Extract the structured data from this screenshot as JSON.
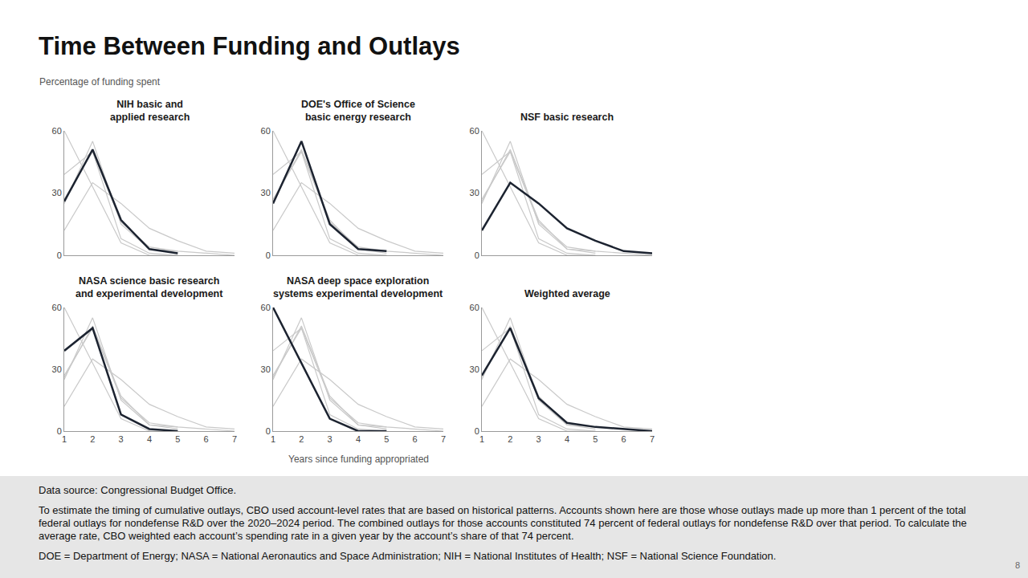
{
  "title": "Time Between Funding and Outlays",
  "subtitle": "Percentage of funding spent",
  "chart_data": {
    "type": "line",
    "color": "#1c2330",
    "x": [
      1,
      2,
      3,
      4,
      5,
      6,
      7
    ],
    "x_label": "Years since funding appropriated",
    "xlim": [
      1,
      7
    ],
    "xticks": [
      1,
      2,
      3,
      4,
      5,
      6,
      7
    ],
    "ylim": [
      0,
      60
    ],
    "yticks": [
      0,
      30,
      60
    ],
    "grid": false,
    "series": [
      {
        "name": "NIH basic and applied research",
        "values": [
          26,
          51,
          17,
          3,
          1,
          null,
          null
        ]
      },
      {
        "name": "DOE's Office of Science basic energy research",
        "values": [
          25,
          55,
          15,
          3,
          2,
          null,
          null
        ]
      },
      {
        "name": "NSF basic research",
        "values": [
          12,
          35,
          25,
          13,
          7,
          2,
          1
        ]
      },
      {
        "name": "NASA science basic research and experimental development",
        "values": [
          39,
          50,
          8,
          1,
          0,
          null,
          null
        ]
      },
      {
        "name": "NASA deep space exploration systems experimental development",
        "values": [
          60,
          33,
          6,
          0,
          0,
          null,
          null
        ]
      },
      {
        "name": "Weighted average",
        "values": [
          27,
          50,
          16,
          4,
          2,
          1,
          0
        ]
      }
    ]
  },
  "notes": [
    "Data source: Congressional Budget Office.",
    "To estimate the timing of cumulative outlays, CBO used account-level rates that are based on historical patterns. Accounts shown here are those whose outlays made up more than 1 percent of the total federal outlays for nondefense R&D over the 2020–2024 period. The combined outlays for those accounts constituted 74 percent of federal outlays for nondefense R&D over that period. To calculate the average rate, CBO weighted each account’s spending rate in a given year by the account’s share of that 74 percent.",
    "DOE = Department of Energy; NASA = National Aeronautics and Space Administration; NIH = National Institutes of Health; NSF = National Science Foundation."
  ],
  "page_number": "8"
}
